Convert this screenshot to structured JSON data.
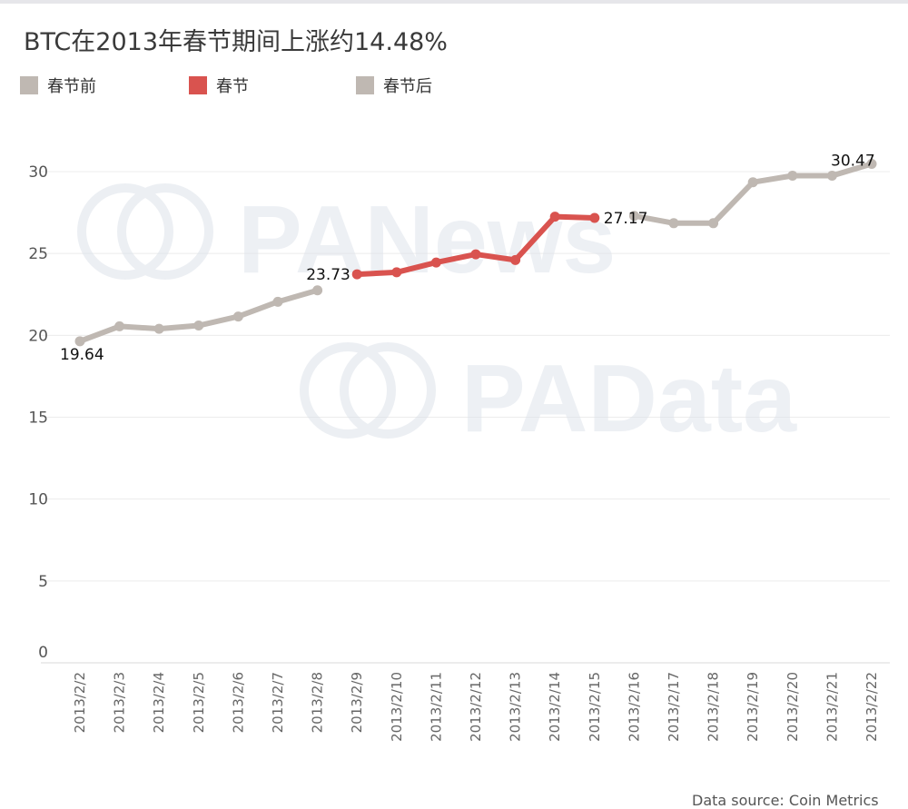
{
  "title": "BTC在2013年春节期间上涨约14.48%",
  "legend": [
    {
      "label": "春节前",
      "color": "#bfb8b2"
    },
    {
      "label": "春节",
      "color": "#d9534f"
    },
    {
      "label": "春节后",
      "color": "#bfb8b2"
    }
  ],
  "watermark": {
    "logo1": "PANews",
    "logo2": "PAData"
  },
  "source": "Data source: Coin Metrics",
  "chart_data": {
    "type": "line",
    "title": "BTC在2013年春节期间上涨约14.48%",
    "xlabel": "",
    "ylabel": "",
    "ylim": [
      0,
      32
    ],
    "yticks": [
      0,
      5,
      10,
      15,
      20,
      25,
      30
    ],
    "grid": "horizontal",
    "legend_position": "top-left",
    "categories": [
      "2013/2/2",
      "2013/2/3",
      "2013/2/4",
      "2013/2/5",
      "2013/2/6",
      "2013/2/7",
      "2013/2/8",
      "2013/2/9",
      "2013/2/10",
      "2013/2/11",
      "2013/2/12",
      "2013/2/13",
      "2013/2/14",
      "2013/2/15",
      "2013/2/16",
      "2013/2/17",
      "2013/2/18",
      "2013/2/19",
      "2013/2/20",
      "2013/2/21",
      "2013/2/22"
    ],
    "series": [
      {
        "name": "春节前",
        "color": "#bfb8b2",
        "x": [
          "2013/2/2",
          "2013/2/3",
          "2013/2/4",
          "2013/2/5",
          "2013/2/6",
          "2013/2/7",
          "2013/2/8"
        ],
        "values": [
          19.64,
          20.55,
          20.4,
          20.6,
          21.15,
          22.05,
          22.75
        ]
      },
      {
        "name": "春节",
        "color": "#d9534f",
        "x": [
          "2013/2/9",
          "2013/2/10",
          "2013/2/11",
          "2013/2/12",
          "2013/2/13",
          "2013/2/14",
          "2013/2/15"
        ],
        "values": [
          23.73,
          23.85,
          24.45,
          24.95,
          24.6,
          27.25,
          27.17
        ]
      },
      {
        "name": "春节后",
        "color": "#bfb8b2",
        "x": [
          "2013/2/16",
          "2013/2/17",
          "2013/2/18",
          "2013/2/19",
          "2013/2/20",
          "2013/2/21",
          "2013/2/22"
        ],
        "values": [
          27.3,
          26.85,
          26.85,
          29.35,
          29.75,
          29.75,
          30.47
        ]
      }
    ],
    "data_labels": [
      {
        "x": "2013/2/2",
        "text": "19.64"
      },
      {
        "x": "2013/2/9",
        "text": "23.73"
      },
      {
        "x": "2013/2/15",
        "text": "27.17"
      },
      {
        "x": "2013/2/22",
        "text": "30.47"
      }
    ]
  }
}
